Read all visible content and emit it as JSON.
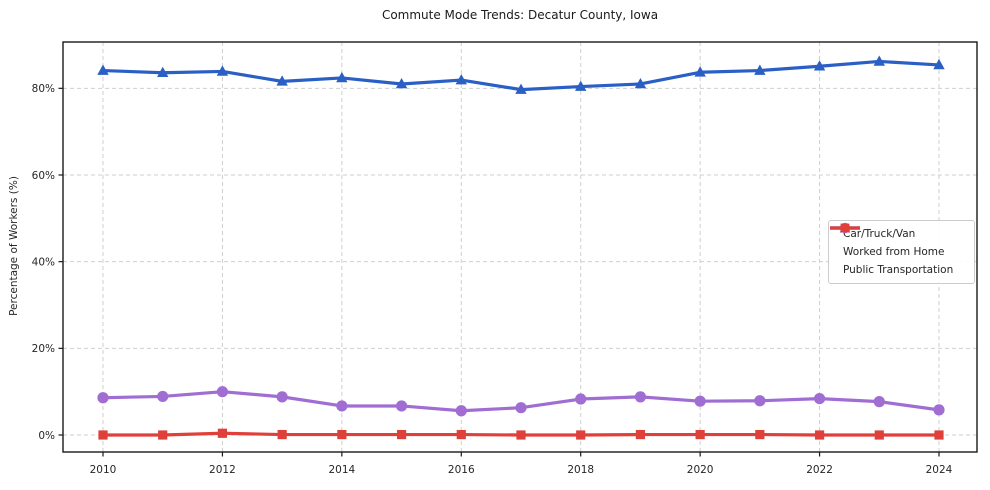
{
  "title": "Commute Mode Trends: Decatur County, Iowa",
  "chart_data": {
    "type": "line",
    "title": "Commute Mode Trends: Decatur County, Iowa",
    "xlabel": "",
    "ylabel": "Percentage of Workers (%)",
    "x": [
      2010,
      2011,
      2012,
      2013,
      2014,
      2015,
      2016,
      2017,
      2018,
      2019,
      2020,
      2021,
      2022,
      2023,
      2024
    ],
    "x_tick_labels": [
      "2010",
      "2012",
      "2014",
      "2016",
      "2018",
      "2020",
      "2022",
      "2024"
    ],
    "x_tick_years": [
      2010,
      2012,
      2014,
      2016,
      2018,
      2020,
      2022,
      2024
    ],
    "y_ticks": [
      0,
      20,
      40,
      60,
      80
    ],
    "y_tick_labels": [
      "0%",
      "20%",
      "40%",
      "60%",
      "80%"
    ],
    "ylim": [
      -4,
      91
    ],
    "grid": true,
    "grid_style": "dashed",
    "legend_position": "center right",
    "series": [
      {
        "name": "Car/Truck/Van",
        "color": "#2a5fc5",
        "marker": "triangle",
        "values": [
          84.1,
          83.6,
          83.9,
          81.6,
          82.4,
          81.0,
          81.9,
          79.7,
          80.4,
          81.0,
          83.7,
          84.1,
          85.1,
          86.2,
          85.4
        ]
      },
      {
        "name": "Worked from Home",
        "color": "#a06ed2",
        "marker": "circle",
        "values": [
          8.6,
          8.9,
          10.0,
          8.8,
          6.7,
          6.7,
          5.6,
          6.3,
          8.3,
          8.8,
          7.8,
          7.9,
          8.4,
          7.7,
          5.8
        ]
      },
      {
        "name": "Public Transportation",
        "color": "#e0403a",
        "marker": "square",
        "values": [
          0.0,
          0.0,
          0.4,
          0.1,
          0.1,
          0.1,
          0.1,
          0.0,
          0.0,
          0.1,
          0.1,
          0.1,
          0.0,
          0.0,
          0.0
        ]
      }
    ],
    "colors": {
      "grid": "#cfcfcf",
      "spine": "#1a1a1a",
      "tick_text": "#262626"
    }
  }
}
